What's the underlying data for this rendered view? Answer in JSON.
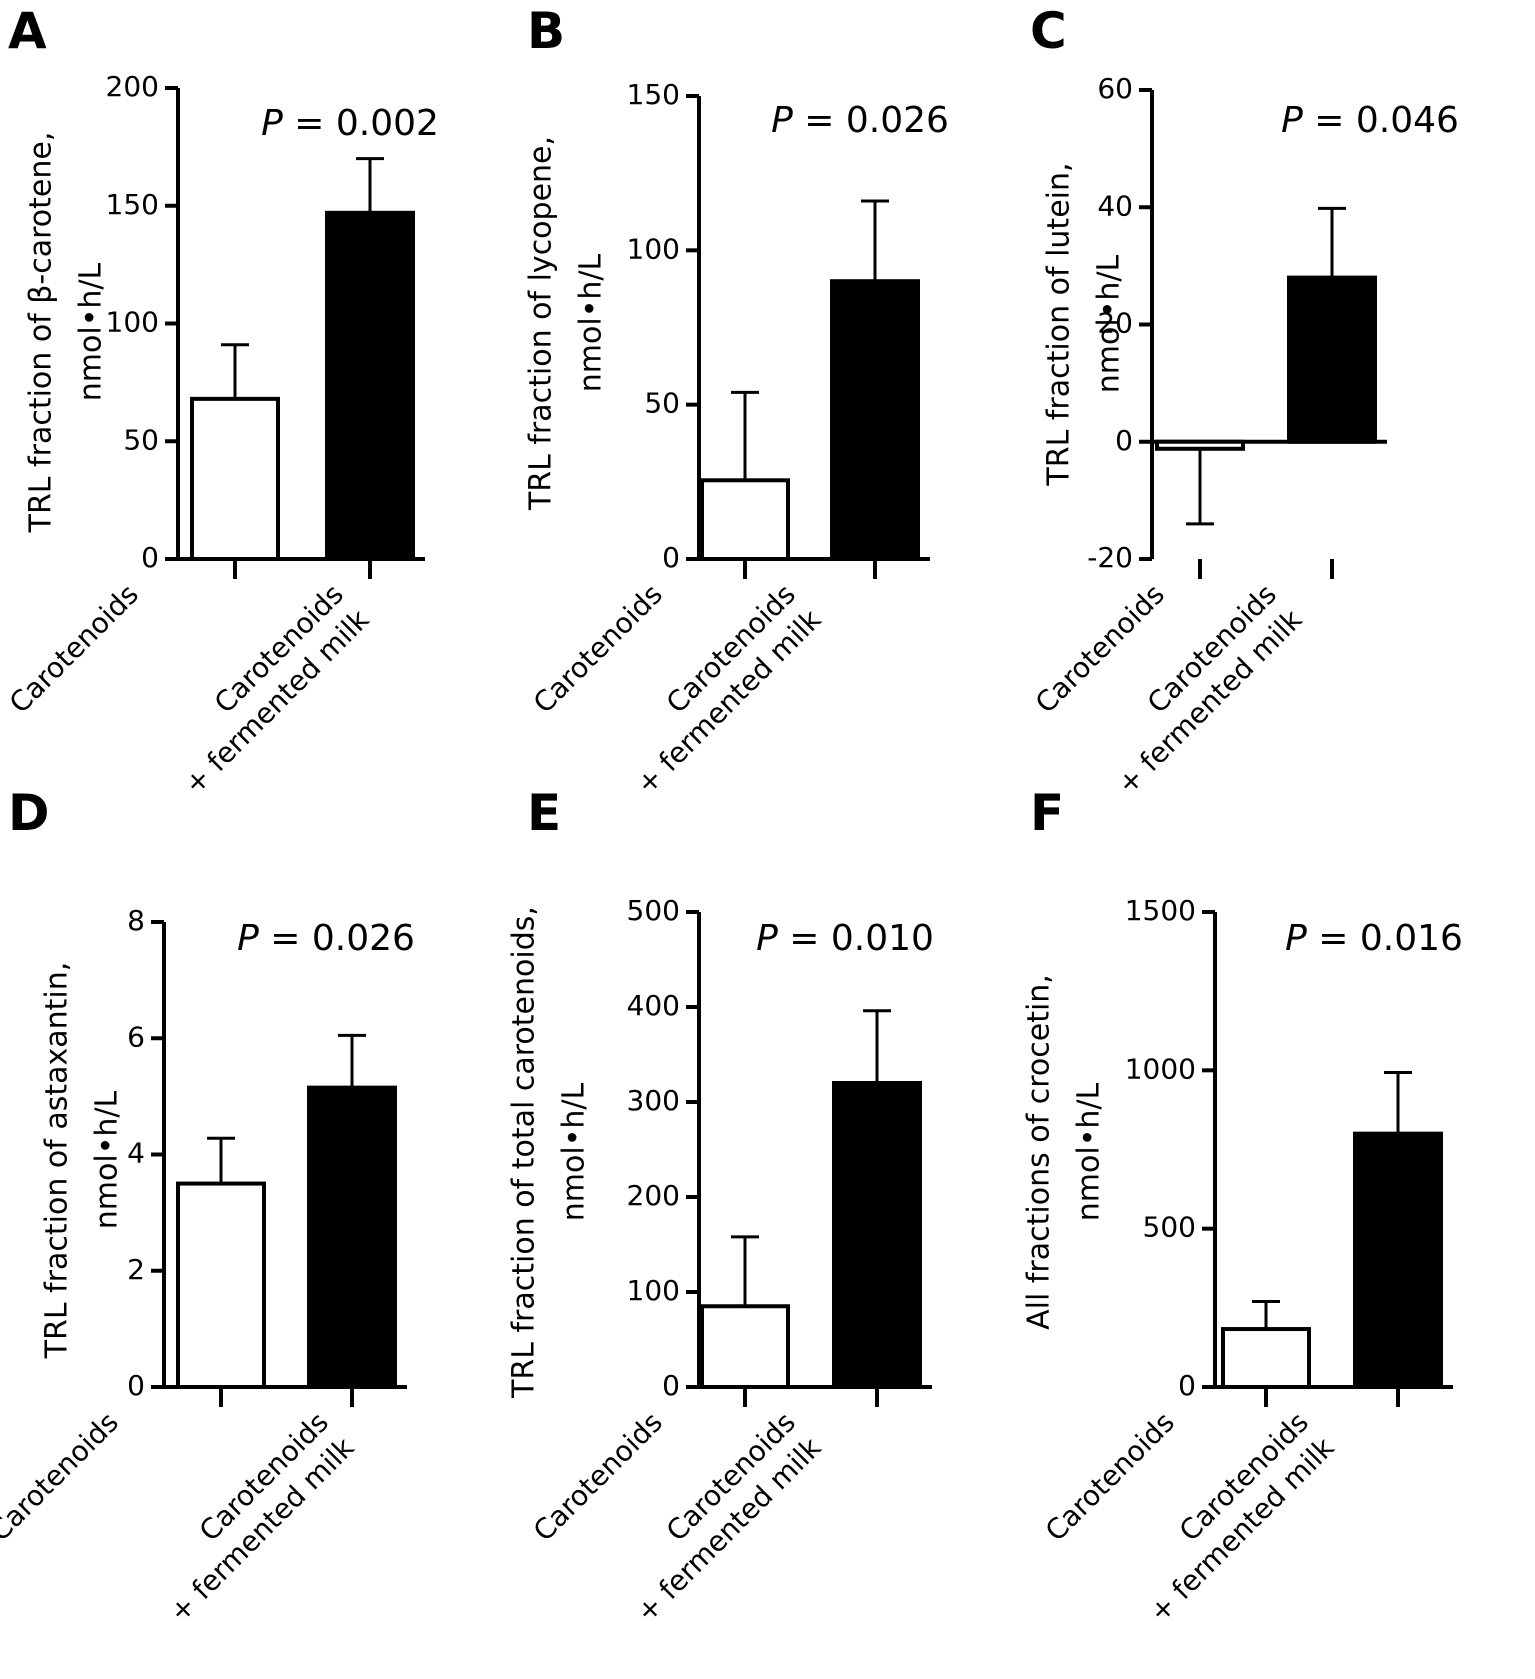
{
  "chart_data": [
    {
      "type": "bar",
      "panel": "A",
      "ylabel_lines": [
        "TRL fraction of β-carotene,",
        "nmol•h/L"
      ],
      "p_label": "P",
      "p_value": "= 0.002",
      "ylim": [
        0,
        200
      ],
      "yticks": [
        0,
        50,
        100,
        150,
        200
      ],
      "categories": [
        [
          "Carotenoids"
        ],
        [
          "Carotenoids",
          "+ fermented milk"
        ]
      ],
      "values": [
        68,
        147
      ],
      "errors": [
        23,
        23
      ],
      "bar_colors": [
        "#ffffff",
        "#000000"
      ]
    },
    {
      "type": "bar",
      "panel": "B",
      "ylabel_lines": [
        "TRL fraction of lycopene,",
        "nmol•h/L"
      ],
      "p_label": "P",
      "p_value": "= 0.026",
      "ylim": [
        0,
        150
      ],
      "yticks": [
        0,
        50,
        100,
        150
      ],
      "categories": [
        [
          "Carotenoids"
        ],
        [
          "Carotenoids",
          "+ fermented milk"
        ]
      ],
      "values": [
        25.5,
        90
      ],
      "errors": [
        28.5,
        26
      ],
      "bar_colors": [
        "#ffffff",
        "#000000"
      ]
    },
    {
      "type": "bar",
      "panel": "C",
      "ylabel_lines": [
        "TRL fraction of lutein,",
        "nmol•h/L"
      ],
      "p_label": "P",
      "p_value": "= 0.046",
      "ylim": [
        -20,
        60
      ],
      "yticks": [
        -20,
        0,
        20,
        40,
        60
      ],
      "categories": [
        [
          "Carotenoids"
        ],
        [
          "Carotenoids",
          "+ fermented milk"
        ]
      ],
      "values": [
        -1.2,
        28
      ],
      "errors": [
        12.8,
        11.8
      ],
      "bar_colors": [
        "#ffffff",
        "#000000"
      ]
    },
    {
      "type": "bar",
      "panel": "D",
      "ylabel_lines": [
        "TRL fraction of astaxantin,",
        "nmol•h/L"
      ],
      "p_label": "P",
      "p_value": "= 0.026",
      "ylim": [
        0,
        8
      ],
      "yticks": [
        0,
        2,
        4,
        6,
        8
      ],
      "categories": [
        [
          "Carotenoids"
        ],
        [
          "Carotenoids",
          "+ fermented milk"
        ]
      ],
      "values": [
        3.5,
        5.15
      ],
      "errors": [
        0.78,
        0.9
      ],
      "bar_colors": [
        "#ffffff",
        "#000000"
      ]
    },
    {
      "type": "bar",
      "panel": "E",
      "ylabel_lines": [
        "TRL fraction of total carotenoids,",
        "nmol•h/L"
      ],
      "p_label": "P",
      "p_value": "= 0.010",
      "ylim": [
        0,
        500
      ],
      "yticks": [
        0,
        100,
        200,
        300,
        400,
        500
      ],
      "categories": [
        [
          "Carotenoids"
        ],
        [
          "Carotenoids",
          "+ fermented milk"
        ]
      ],
      "values": [
        85,
        320
      ],
      "errors": [
        73,
        76
      ],
      "bar_colors": [
        "#ffffff",
        "#000000"
      ]
    },
    {
      "type": "bar",
      "panel": "F",
      "ylabel_lines": [
        "All fractions of crocetin,",
        "nmol•h/L"
      ],
      "p_label": "P",
      "p_value": "= 0.016",
      "ylim": [
        0,
        1500
      ],
      "yticks": [
        0,
        500,
        1000,
        1500
      ],
      "categories": [
        [
          "Carotenoids"
        ],
        [
          "Carotenoids",
          "+ fermented milk"
        ]
      ],
      "values": [
        183,
        800
      ],
      "errors": [
        87,
        193
      ],
      "bar_colors": [
        "#ffffff",
        "#000000"
      ]
    }
  ]
}
